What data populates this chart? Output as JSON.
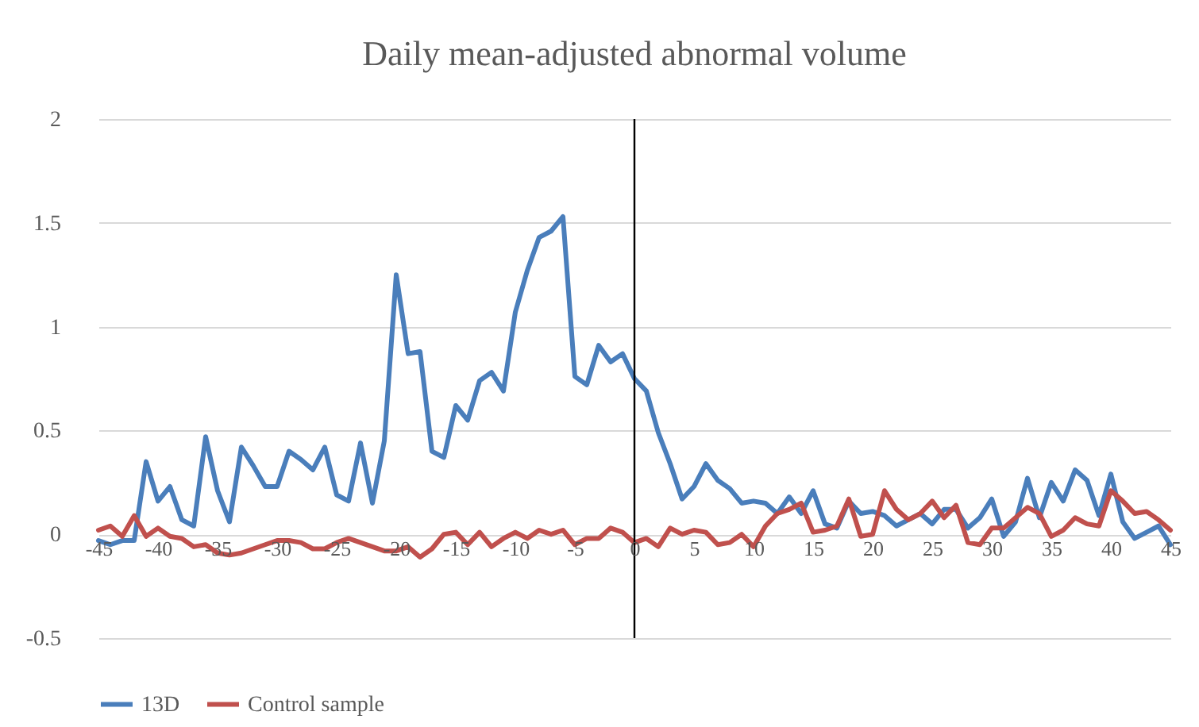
{
  "chart_data": {
    "type": "line",
    "title": "Daily mean-adjusted abnormal volume",
    "x": [
      -45,
      -44,
      -43,
      -42,
      -41,
      -40,
      -39,
      -38,
      -37,
      -36,
      -35,
      -34,
      -33,
      -32,
      -31,
      -30,
      -29,
      -28,
      -27,
      -26,
      -25,
      -24,
      -23,
      -22,
      -21,
      -20,
      -19,
      -18,
      -17,
      -16,
      -15,
      -14,
      -13,
      -12,
      -11,
      -10,
      -9,
      -8,
      -7,
      -6,
      -5,
      -4,
      -3,
      -2,
      -1,
      0,
      1,
      2,
      3,
      4,
      5,
      6,
      7,
      8,
      9,
      10,
      11,
      12,
      13,
      14,
      15,
      16,
      17,
      18,
      19,
      20,
      21,
      22,
      23,
      24,
      25,
      26,
      27,
      28,
      29,
      30,
      31,
      32,
      33,
      34,
      35,
      36,
      37,
      38,
      39,
      40,
      41,
      42,
      43,
      44,
      45
    ],
    "series": [
      {
        "name": "13D",
        "color": "#4a7ebb",
        "values": [
          -0.03,
          -0.05,
          -0.03,
          -0.03,
          0.35,
          0.16,
          0.23,
          0.07,
          0.04,
          0.47,
          0.21,
          0.06,
          0.42,
          0.33,
          0.23,
          0.23,
          0.4,
          0.36,
          0.31,
          0.42,
          0.19,
          0.16,
          0.44,
          0.15,
          0.45,
          1.25,
          0.87,
          0.88,
          0.4,
          0.37,
          0.62,
          0.55,
          0.74,
          0.78,
          0.69,
          1.07,
          1.27,
          1.43,
          1.46,
          1.53,
          0.76,
          0.72,
          0.91,
          0.83,
          0.87,
          0.75,
          0.69,
          0.49,
          0.34,
          0.17,
          0.23,
          0.34,
          0.26,
          0.22,
          0.15,
          0.16,
          0.15,
          0.1,
          0.18,
          0.1,
          0.21,
          0.05,
          0.03,
          0.16,
          0.1,
          0.11,
          0.09,
          0.04,
          0.07,
          0.1,
          0.05,
          0.12,
          0.12,
          0.03,
          0.08,
          0.17,
          -0.01,
          0.06,
          0.27,
          0.08,
          0.25,
          0.16,
          0.31,
          0.26,
          0.09,
          0.29,
          0.06,
          -0.02,
          0.01,
          0.04,
          -0.05
        ]
      },
      {
        "name": "Control sample",
        "color": "#c0504d",
        "values": [
          0.02,
          0.04,
          -0.01,
          0.09,
          -0.01,
          0.03,
          -0.01,
          -0.02,
          -0.06,
          -0.05,
          -0.09,
          -0.1,
          -0.09,
          -0.07,
          -0.05,
          -0.03,
          -0.03,
          -0.04,
          -0.07,
          -0.07,
          -0.04,
          -0.02,
          -0.04,
          -0.06,
          -0.08,
          -0.08,
          -0.06,
          -0.11,
          -0.07,
          0,
          0.01,
          -0.05,
          0.01,
          -0.06,
          -0.02,
          0.01,
          -0.02,
          0.02,
          0,
          0.02,
          -0.05,
          -0.02,
          -0.02,
          0.03,
          0.01,
          -0.04,
          -0.02,
          -0.06,
          0.03,
          0,
          0.02,
          0.01,
          -0.05,
          -0.04,
          0,
          -0.06,
          0.04,
          0.1,
          0.12,
          0.15,
          0.01,
          0.02,
          0.04,
          0.17,
          -0.01,
          0,
          0.21,
          0.12,
          0.07,
          0.1,
          0.16,
          0.08,
          0.14,
          -0.04,
          -0.05,
          0.03,
          0.03,
          0.08,
          0.13,
          0.1,
          -0.01,
          0.02,
          0.08,
          0.05,
          0.04,
          0.21,
          0.16,
          0.1,
          0.11,
          0.07,
          0.02
        ]
      }
    ],
    "xlim": [
      -45,
      45
    ],
    "xticks": [
      -45,
      -40,
      -35,
      -30,
      -25,
      -20,
      -15,
      -10,
      -5,
      0,
      5,
      10,
      15,
      20,
      25,
      30,
      35,
      40,
      45
    ],
    "ylim": [
      -0.5,
      2
    ],
    "yticks": [
      -0.5,
      0,
      0.5,
      1,
      1.5,
      2
    ],
    "ref_lines": [
      {
        "axis": "x",
        "value": 0,
        "color": "#000000"
      }
    ],
    "grid": "y",
    "legend": "bottom",
    "marker": "none",
    "line_style": "solid"
  }
}
